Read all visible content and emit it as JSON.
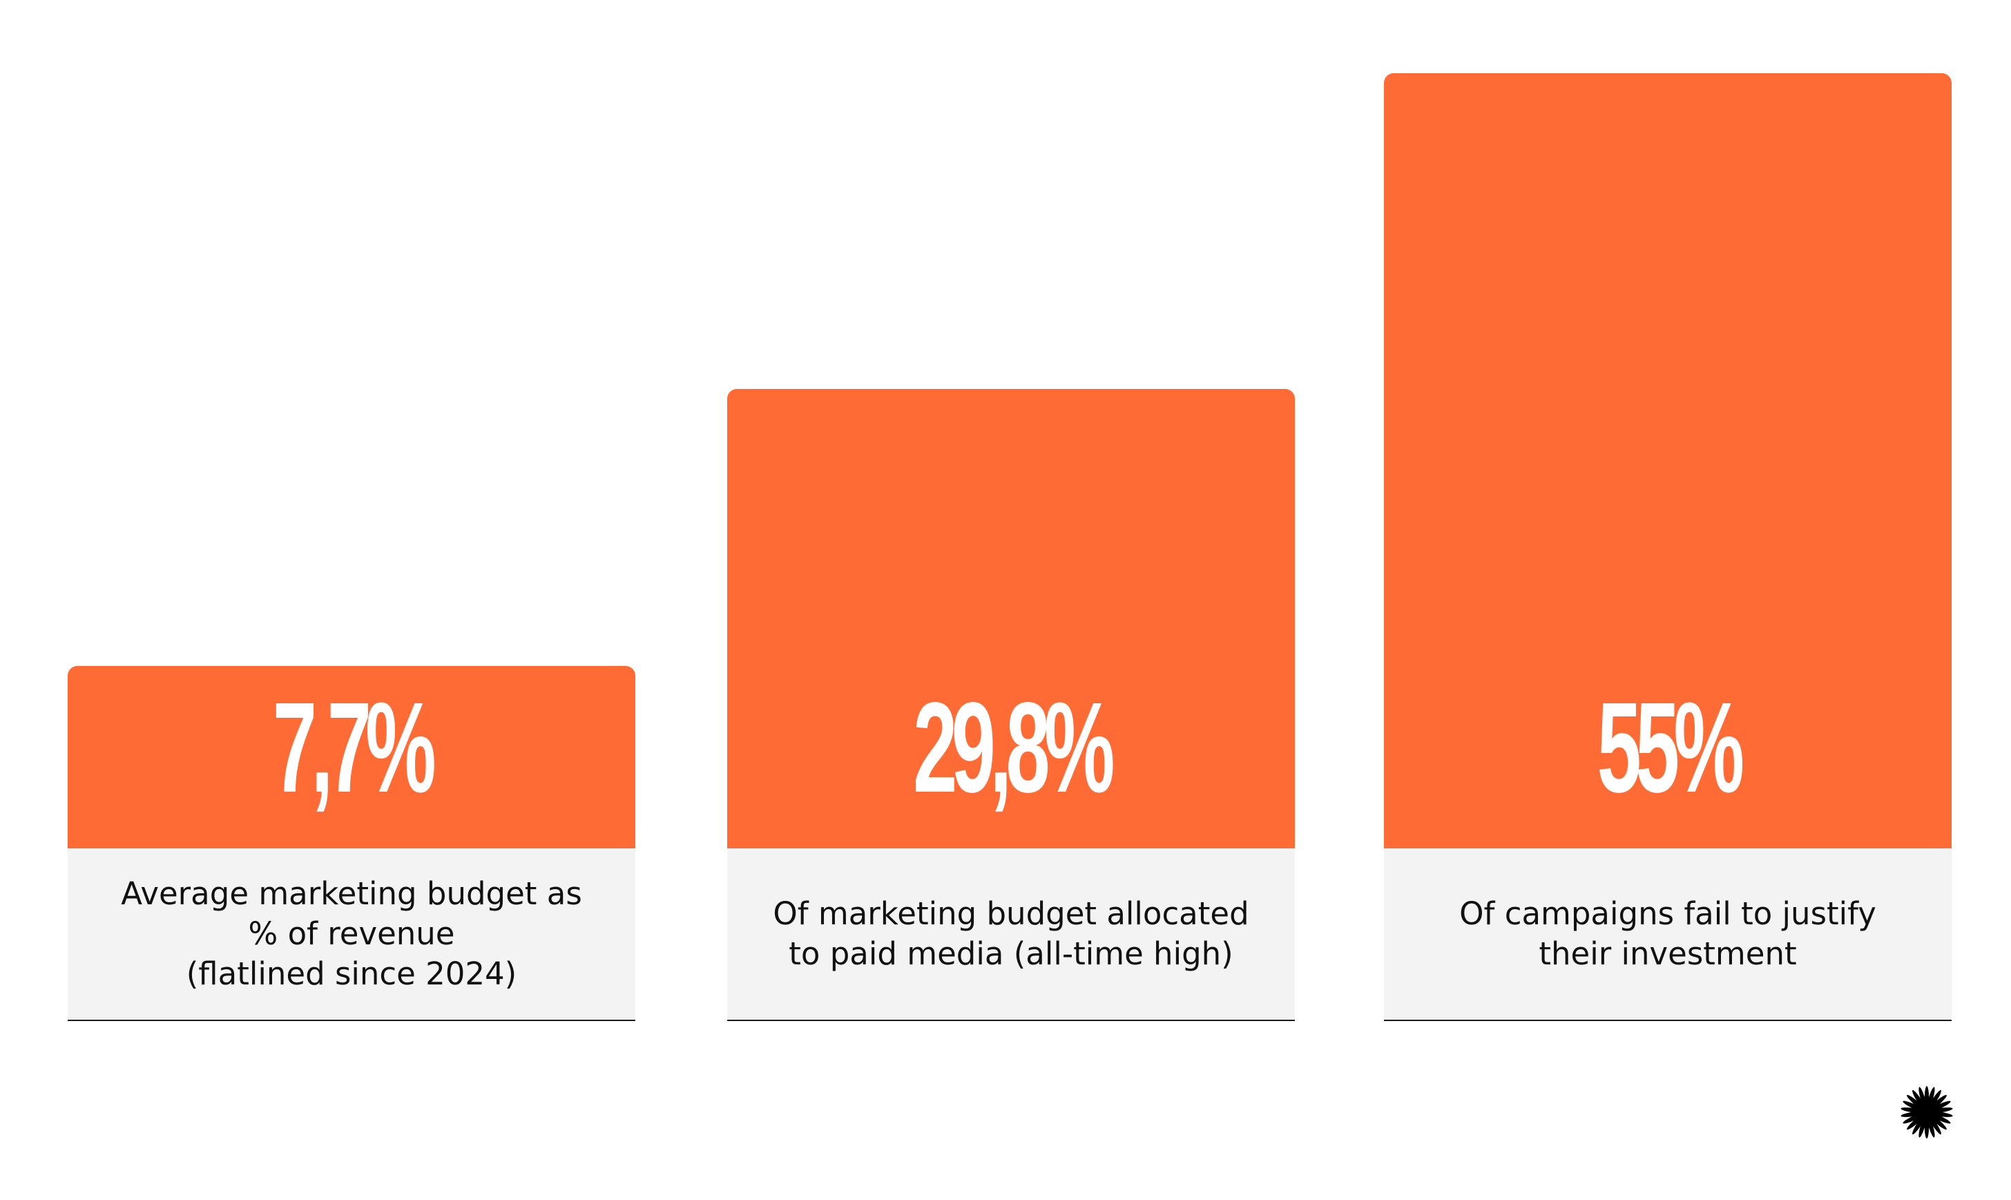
{
  "chart_data": {
    "type": "bar",
    "categories": [
      "Average marketing budget as\n% of revenue\n(flatlined since 2024)",
      "Of marketing budget allocated\nto paid media (all-time high)",
      "Of campaigns fail to justify\ntheir investment"
    ],
    "values": [
      7.7,
      29.8,
      55
    ],
    "value_labels": [
      "7,7%",
      "29,8%",
      "55%"
    ],
    "ylim": [
      0,
      55
    ],
    "grid": false,
    "bar_color": "#ff6b35",
    "caption_bg": "#f3f3f3"
  },
  "logo": {
    "icon": "asterisk-burst-icon"
  }
}
